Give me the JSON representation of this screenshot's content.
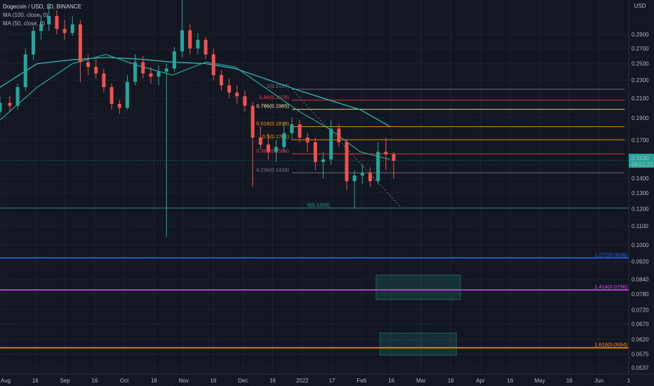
{
  "legend": {
    "title": "Dogecoin / USD, 1D, BINANCE",
    "ma100": "MA (100, close, 0)",
    "ma50": "MA (50, close, 0)"
  },
  "colors": {
    "background": "#131722",
    "grid": "#1e222d",
    "up_candle": "#26a69a",
    "down_candle": "#ef5350",
    "ma100": "#2ec4c9",
    "ma50": "#26a69a",
    "price_badge": "#26a69a"
  },
  "price_axis": {
    "currency": "USD",
    "ticks": [
      "0.2900",
      "0.2700",
      "0.2500",
      "0.2300",
      "0.2100",
      "0.1900",
      "0.1700",
      "0.1500",
      "0.1400",
      "0.1300",
      "0.1200",
      "0.1100",
      "0.1000",
      "0.0920",
      "0.0840",
      "0.0780",
      "0.0720",
      "0.0670",
      "0.0620",
      "0.0575",
      "0.0537"
    ],
    "current_price": "0.1530",
    "countdown": "04:01:21"
  },
  "time_axis": {
    "labels": [
      "Aug",
      "16",
      "Sep",
      "16",
      "Oct",
      "16",
      "Nov",
      "16",
      "Dec",
      "16",
      "2022",
      "17",
      "Feb",
      "16",
      "Mar",
      "16",
      "Apr",
      "16",
      "May",
      "16",
      "Jun",
      "1"
    ]
  },
  "chart_data": {
    "type": "candlestick",
    "title": "Dogecoin / USD, 1D, BINANCE",
    "y_scale": "log",
    "ylim": [
      0.052,
      0.345
    ],
    "x_range": [
      "2021-07-28",
      "2022-06-14"
    ],
    "series": [
      {
        "name": "Dogecoin / USD",
        "style": "candles",
        "color_up": "#26a69a",
        "color_down": "#ef5350",
        "points": [
          {
            "date": "2021-07-28",
            "o": 0.196,
            "h": 0.212,
            "l": 0.192,
            "c": 0.205
          },
          {
            "date": "2021-08-02",
            "o": 0.205,
            "h": 0.212,
            "l": 0.196,
            "c": 0.202
          },
          {
            "date": "2021-08-06",
            "o": 0.202,
            "h": 0.226,
            "l": 0.198,
            "c": 0.222
          },
          {
            "date": "2021-08-10",
            "o": 0.222,
            "h": 0.27,
            "l": 0.218,
            "c": 0.262
          },
          {
            "date": "2021-08-14",
            "o": 0.262,
            "h": 0.302,
            "l": 0.255,
            "c": 0.295
          },
          {
            "date": "2021-08-18",
            "o": 0.295,
            "h": 0.32,
            "l": 0.282,
            "c": 0.305
          },
          {
            "date": "2021-08-22",
            "o": 0.305,
            "h": 0.34,
            "l": 0.295,
            "c": 0.318
          },
          {
            "date": "2021-08-26",
            "o": 0.318,
            "h": 0.328,
            "l": 0.29,
            "c": 0.298
          },
          {
            "date": "2021-08-30",
            "o": 0.298,
            "h": 0.312,
            "l": 0.282,
            "c": 0.292
          },
          {
            "date": "2021-09-03",
            "o": 0.292,
            "h": 0.318,
            "l": 0.288,
            "c": 0.305
          },
          {
            "date": "2021-09-07",
            "o": 0.305,
            "h": 0.312,
            "l": 0.228,
            "c": 0.252
          },
          {
            "date": "2021-09-11",
            "o": 0.252,
            "h": 0.262,
            "l": 0.236,
            "c": 0.246
          },
          {
            "date": "2021-09-15",
            "o": 0.246,
            "h": 0.256,
            "l": 0.232,
            "c": 0.238
          },
          {
            "date": "2021-09-19",
            "o": 0.238,
            "h": 0.244,
            "l": 0.216,
            "c": 0.222
          },
          {
            "date": "2021-09-23",
            "o": 0.222,
            "h": 0.226,
            "l": 0.198,
            "c": 0.204
          },
          {
            "date": "2021-09-27",
            "o": 0.204,
            "h": 0.208,
            "l": 0.194,
            "c": 0.2
          },
          {
            "date": "2021-10-01",
            "o": 0.2,
            "h": 0.236,
            "l": 0.198,
            "c": 0.228
          },
          {
            "date": "2021-10-05",
            "o": 0.228,
            "h": 0.262,
            "l": 0.224,
            "c": 0.252
          },
          {
            "date": "2021-10-09",
            "o": 0.252,
            "h": 0.26,
            "l": 0.232,
            "c": 0.238
          },
          {
            "date": "2021-10-13",
            "o": 0.238,
            "h": 0.246,
            "l": 0.226,
            "c": 0.234
          },
          {
            "date": "2021-10-17",
            "o": 0.234,
            "h": 0.248,
            "l": 0.224,
            "c": 0.24
          },
          {
            "date": "2021-10-21",
            "o": 0.24,
            "h": 0.25,
            "l": 0.104,
            "c": 0.244
          },
          {
            "date": "2021-10-25",
            "o": 0.244,
            "h": 0.272,
            "l": 0.24,
            "c": 0.266
          },
          {
            "date": "2021-10-29",
            "o": 0.266,
            "h": 0.346,
            "l": 0.258,
            "c": 0.296
          },
          {
            "date": "2021-11-02",
            "o": 0.296,
            "h": 0.305,
            "l": 0.262,
            "c": 0.27
          },
          {
            "date": "2021-11-06",
            "o": 0.27,
            "h": 0.292,
            "l": 0.262,
            "c": 0.282
          },
          {
            "date": "2021-11-10",
            "o": 0.282,
            "h": 0.286,
            "l": 0.256,
            "c": 0.262
          },
          {
            "date": "2021-11-14",
            "o": 0.262,
            "h": 0.27,
            "l": 0.23,
            "c": 0.236
          },
          {
            "date": "2021-11-18",
            "o": 0.236,
            "h": 0.242,
            "l": 0.218,
            "c": 0.224
          },
          {
            "date": "2021-11-22",
            "o": 0.224,
            "h": 0.232,
            "l": 0.21,
            "c": 0.216
          },
          {
            "date": "2021-11-26",
            "o": 0.216,
            "h": 0.224,
            "l": 0.204,
            "c": 0.212
          },
          {
            "date": "2021-11-30",
            "o": 0.212,
            "h": 0.218,
            "l": 0.196,
            "c": 0.202
          },
          {
            "date": "2021-12-04",
            "o": 0.202,
            "h": 0.206,
            "l": 0.134,
            "c": 0.172
          },
          {
            "date": "2021-12-08",
            "o": 0.172,
            "h": 0.182,
            "l": 0.162,
            "c": 0.166
          },
          {
            "date": "2021-12-12",
            "o": 0.166,
            "h": 0.176,
            "l": 0.154,
            "c": 0.16
          },
          {
            "date": "2021-12-16",
            "o": 0.16,
            "h": 0.17,
            "l": 0.152,
            "c": 0.164
          },
          {
            "date": "2021-12-20",
            "o": 0.164,
            "h": 0.186,
            "l": 0.16,
            "c": 0.176
          },
          {
            "date": "2021-12-24",
            "o": 0.176,
            "h": 0.19,
            "l": 0.17,
            "c": 0.184
          },
          {
            "date": "2021-12-28",
            "o": 0.184,
            "h": 0.188,
            "l": 0.168,
            "c": 0.172
          },
          {
            "date": "2022-01-01",
            "o": 0.172,
            "h": 0.176,
            "l": 0.16,
            "c": 0.168
          },
          {
            "date": "2022-01-05",
            "o": 0.168,
            "h": 0.172,
            "l": 0.146,
            "c": 0.152
          },
          {
            "date": "2022-01-09",
            "o": 0.152,
            "h": 0.16,
            "l": 0.14,
            "c": 0.154
          },
          {
            "date": "2022-01-13",
            "o": 0.154,
            "h": 0.188,
            "l": 0.15,
            "c": 0.18
          },
          {
            "date": "2022-01-17",
            "o": 0.18,
            "h": 0.184,
            "l": 0.164,
            "c": 0.168
          },
          {
            "date": "2022-01-21",
            "o": 0.168,
            "h": 0.17,
            "l": 0.132,
            "c": 0.138
          },
          {
            "date": "2022-01-25",
            "o": 0.138,
            "h": 0.146,
            "l": 0.12,
            "c": 0.142
          },
          {
            "date": "2022-01-29",
            "o": 0.142,
            "h": 0.15,
            "l": 0.136,
            "c": 0.144
          },
          {
            "date": "2022-02-02",
            "o": 0.144,
            "h": 0.148,
            "l": 0.134,
            "c": 0.138
          },
          {
            "date": "2022-02-06",
            "o": 0.138,
            "h": 0.168,
            "l": 0.136,
            "c": 0.16
          },
          {
            "date": "2022-02-10",
            "o": 0.16,
            "h": 0.172,
            "l": 0.146,
            "c": 0.158
          },
          {
            "date": "2022-02-14",
            "o": 0.158,
            "h": 0.16,
            "l": 0.14,
            "c": 0.153
          }
        ]
      },
      {
        "name": "MA (100, close, 0)",
        "style": "line",
        "color": "#2ec4c9",
        "points": [
          {
            "date": "2021-07-28",
            "v": 0.222
          },
          {
            "date": "2021-08-16",
            "v": 0.25
          },
          {
            "date": "2021-09-03",
            "v": 0.255
          },
          {
            "date": "2021-09-20",
            "v": 0.258
          },
          {
            "date": "2021-10-06",
            "v": 0.256
          },
          {
            "date": "2021-10-24",
            "v": 0.252
          },
          {
            "date": "2021-11-10",
            "v": 0.25
          },
          {
            "date": "2021-11-25",
            "v": 0.244
          },
          {
            "date": "2021-12-10",
            "v": 0.232
          },
          {
            "date": "2021-12-28",
            "v": 0.218
          },
          {
            "date": "2022-01-12",
            "v": 0.208
          },
          {
            "date": "2022-01-28",
            "v": 0.198
          },
          {
            "date": "2022-02-12",
            "v": 0.182
          }
        ]
      },
      {
        "name": "MA (50, close, 0)",
        "style": "line",
        "color": "#26a69a",
        "points": [
          {
            "date": "2021-07-28",
            "v": 0.188
          },
          {
            "date": "2021-08-16",
            "v": 0.222
          },
          {
            "date": "2021-09-03",
            "v": 0.25
          },
          {
            "date": "2021-09-20",
            "v": 0.262
          },
          {
            "date": "2021-10-06",
            "v": 0.248
          },
          {
            "date": "2021-10-24",
            "v": 0.236
          },
          {
            "date": "2021-11-10",
            "v": 0.252
          },
          {
            "date": "2021-11-25",
            "v": 0.246
          },
          {
            "date": "2021-12-10",
            "v": 0.222
          },
          {
            "date": "2021-12-28",
            "v": 0.196
          },
          {
            "date": "2022-01-12",
            "v": 0.18
          },
          {
            "date": "2022-01-28",
            "v": 0.16
          },
          {
            "date": "2022-02-12",
            "v": 0.154
          }
        ]
      }
    ],
    "fib_levels": [
      {
        "label": "1(0.2197)",
        "value": 0.2197,
        "color": "#787b86"
      },
      {
        "label": "0.88(0.2078)",
        "value": 0.2078,
        "color": "#f23645"
      },
      {
        "label": "0.786(0.1985)",
        "value": 0.1985,
        "color": "#ffeb9c"
      },
      {
        "label": "0.618(0.1818)",
        "value": 0.1818,
        "color": "#ff9800"
      },
      {
        "label": "0.5(0.1701)",
        "value": 0.1701,
        "color": "#ff9800"
      },
      {
        "label": "0.382(0.1584)",
        "value": 0.1584,
        "color": "#f23645"
      },
      {
        "label": "0.236(0.1439)",
        "value": 0.1439,
        "color": "#787b86"
      },
      {
        "label": "0(0.1205)",
        "value": 0.1205,
        "color": "#26a69a"
      }
    ],
    "extension_levels": [
      {
        "label": "1.272(0.0936)",
        "value": 0.0936,
        "color": "#2962ff"
      },
      {
        "label": "1.414(0.0796)",
        "value": 0.0796,
        "color": "#e040fb"
      },
      {
        "label": "1.618(0.0594)",
        "value": 0.0594,
        "color": "#ff9800"
      }
    ],
    "target_zones": [
      {
        "y_top": 0.0858,
        "y_bottom": 0.0758,
        "start": "2022-02-05",
        "end": "2022-03-20"
      },
      {
        "y_top": 0.064,
        "y_bottom": 0.0572,
        "start": "2022-02-07",
        "end": "2022-03-18"
      }
    ],
    "fib_anchor": {
      "start": "2021-12-24",
      "end": "2022-02-18"
    },
    "grid": true
  }
}
